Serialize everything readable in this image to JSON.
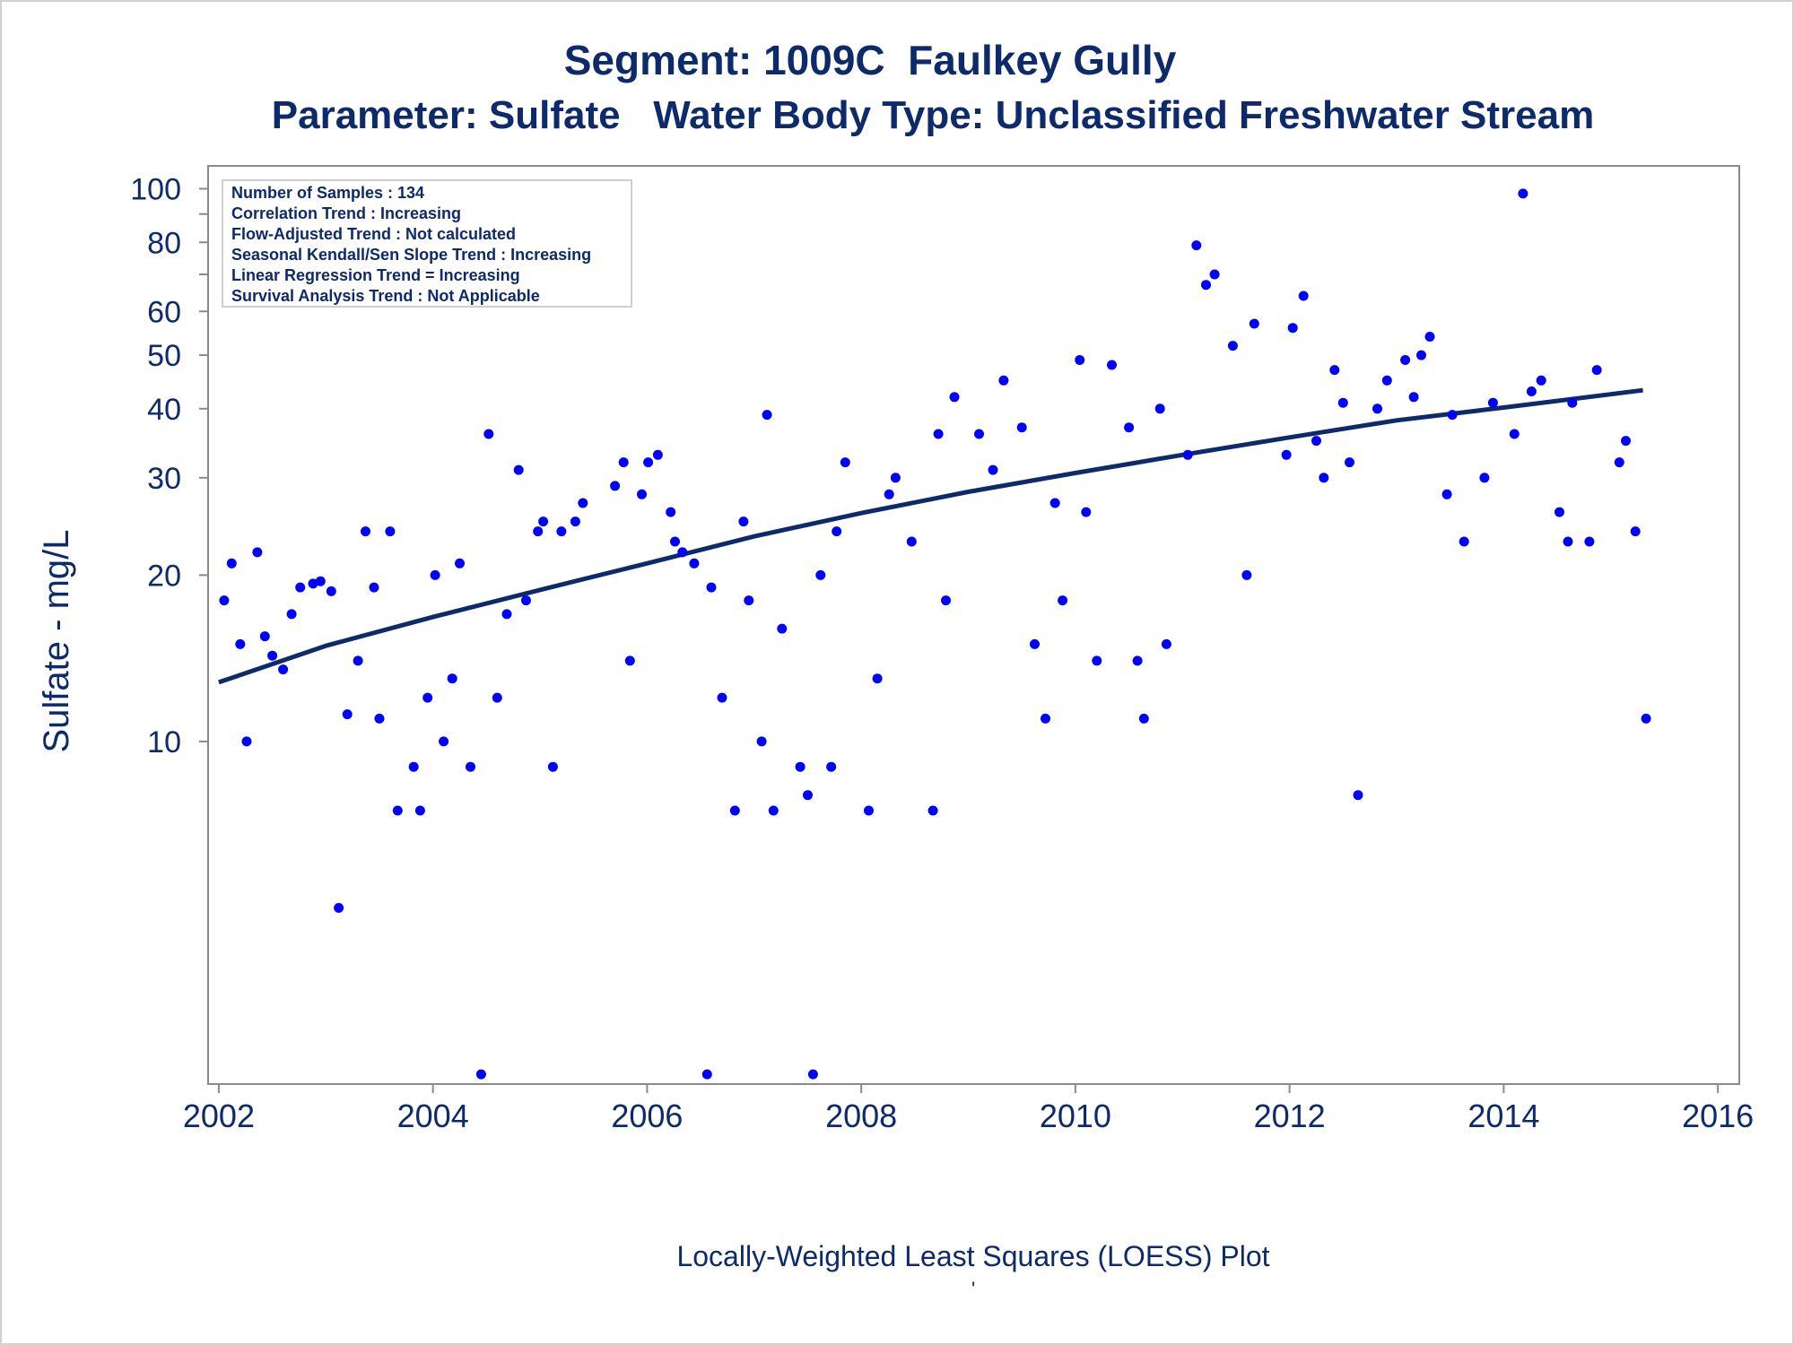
{
  "header": {
    "title_line1": "Segment: 1009C  Faulkey Gully",
    "title_line2": "Parameter: Sulfate   Water Body Type: Unclassified Freshwater Stream"
  },
  "footer": {
    "caption": "Locally-Weighted Least Squares (LOESS) Plot",
    "mark": "'"
  },
  "stats_box": {
    "lines": [
      "Number of Samples : 134",
      "Correlation Trend : Increasing",
      "Flow-Adjusted Trend : Not calculated",
      "Seasonal Kendall/Sen Slope Trend : Increasing",
      "Linear Regression Trend = Increasing",
      "Survival Analysis Trend : Not Applicable"
    ]
  },
  "colors": {
    "text": "#0d2a6b",
    "points": "#0000ff",
    "trend_line": "#0d2a6b",
    "axis": "#8a8a8a"
  },
  "chart_data": {
    "type": "scatter",
    "title": "Segment: 1009C  Faulkey Gully",
    "subtitle": "Parameter: Sulfate   Water Body Type: Unclassified Freshwater Stream",
    "xlabel": "",
    "ylabel": "Sulfate - mg/L",
    "y_scale": "log",
    "xlim": [
      2001.9,
      2016.2
    ],
    "ylim": [
      2.4,
      110
    ],
    "x_ticks": [
      2002,
      2004,
      2006,
      2008,
      2010,
      2012,
      2014,
      2016
    ],
    "x_tick_labels": [
      "2002",
      "2004",
      "2006",
      "2008",
      "2010",
      "2012",
      "2014",
      "2016"
    ],
    "y_ticks": [
      10,
      20,
      30,
      40,
      50,
      60,
      80,
      100
    ],
    "y_tick_labels": [
      "10",
      "20",
      "30",
      "40",
      "50",
      "60",
      "80",
      "100"
    ],
    "y_minor_ticks": [
      70,
      90
    ],
    "grid": false,
    "legend": "none",
    "series": [
      {
        "kind": "points",
        "x": [
          2002.05,
          2002.12,
          2002.2,
          2002.26,
          2002.36,
          2002.43,
          2002.5,
          2002.6,
          2002.68,
          2002.76,
          2002.88,
          2002.95,
          2003.05,
          2003.12,
          2003.2,
          2003.3,
          2003.37,
          2003.45,
          2003.5,
          2003.6,
          2003.67,
          2003.82,
          2003.88,
          2003.95,
          2004.02,
          2004.1,
          2004.18,
          2004.25,
          2004.35,
          2004.45,
          2004.52,
          2004.6,
          2004.69,
          2004.8,
          2004.87,
          2004.98,
          2005.03,
          2005.12,
          2005.2,
          2005.33,
          2005.4,
          2005.7,
          2005.78,
          2005.84,
          2005.95,
          2006.01,
          2006.1,
          2006.22,
          2006.26,
          2006.33,
          2006.44,
          2006.56,
          2006.6,
          2006.7,
          2006.82,
          2006.9,
          2006.95,
          2007.07,
          2007.12,
          2007.18,
          2007.26,
          2007.43,
          2007.5,
          2007.55,
          2007.62,
          2007.72,
          2007.77,
          2007.85,
          2008.07,
          2008.15,
          2008.26,
          2008.32,
          2008.47,
          2008.67,
          2008.72,
          2008.79,
          2008.87,
          2009.1,
          2009.23,
          2009.33,
          2009.5,
          2009.62,
          2009.72,
          2009.81,
          2009.88,
          2010.04,
          2010.1,
          2010.2,
          2010.34,
          2010.5,
          2010.58,
          2010.64,
          2010.79,
          2010.85,
          2011.05,
          2011.13,
          2011.22,
          2011.3,
          2011.47,
          2011.6,
          2011.67,
          2011.97,
          2012.03,
          2012.13,
          2012.25,
          2012.32,
          2012.42,
          2012.5,
          2012.56,
          2012.64,
          2012.82,
          2012.91,
          2013.08,
          2013.16,
          2013.23,
          2013.31,
          2013.47,
          2013.52,
          2013.63,
          2013.82,
          2013.9,
          2014.1,
          2014.18,
          2014.26,
          2014.35,
          2014.52,
          2014.6,
          2014.64,
          2014.8,
          2014.87,
          2015.08,
          2015.14,
          2015.23,
          2015.33
        ],
        "y": [
          18,
          21,
          15,
          10,
          22,
          15.5,
          14.3,
          13.5,
          17,
          19,
          19.3,
          19.5,
          18.7,
          5,
          11.2,
          14,
          24,
          19,
          11,
          24,
          7.5,
          9,
          7.5,
          12,
          20,
          10,
          13,
          21,
          9,
          2.5,
          36,
          12,
          17,
          31,
          18,
          24,
          25,
          9,
          24,
          25,
          27,
          29,
          32,
          14,
          28,
          32,
          33,
          26,
          23,
          22,
          21,
          2.5,
          19,
          12,
          7.5,
          25,
          18,
          10,
          39,
          7.5,
          16,
          9,
          8,
          2.5,
          20,
          9,
          24,
          32,
          7.5,
          13,
          28,
          30,
          23,
          7.5,
          36,
          18,
          42,
          36,
          31,
          45,
          37,
          15,
          11,
          27,
          18,
          49,
          26,
          14,
          48,
          37,
          14,
          11,
          40,
          15,
          33,
          79,
          67,
          70,
          52,
          20,
          57,
          33,
          56,
          64,
          35,
          30,
          47,
          41,
          32,
          8,
          40,
          45,
          49,
          42,
          50,
          54,
          28,
          39,
          23,
          30,
          41,
          36,
          98,
          43,
          45,
          26,
          23,
          41,
          23,
          47,
          32,
          35,
          24,
          11
        ]
      },
      {
        "kind": "line",
        "name": "LOESS",
        "x": [
          2002.0,
          2003.0,
          2004.0,
          2005.0,
          2006.0,
          2007.0,
          2008.0,
          2009.0,
          2010.0,
          2011.0,
          2012.0,
          2013.0,
          2014.0,
          2015.3
        ],
        "y": [
          12.8,
          14.9,
          16.8,
          18.8,
          21.0,
          23.5,
          25.9,
          28.3,
          30.6,
          33.0,
          35.5,
          38.1,
          40.2,
          43.2
        ]
      }
    ]
  }
}
